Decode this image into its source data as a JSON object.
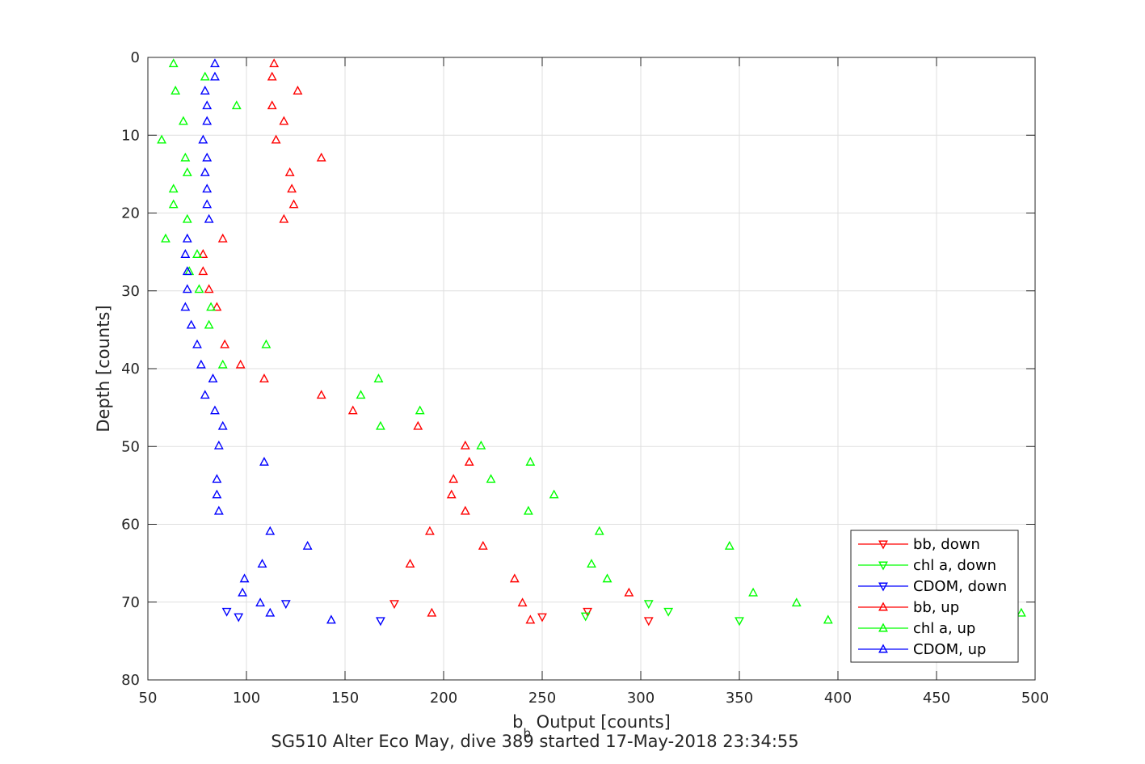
{
  "chart_data": {
    "type": "scatter",
    "title": "",
    "xlabel_base": "b",
    "xlabel_sub": "b",
    "xlabel_rest": " Output [counts]",
    "caption": "SG510 Alter Eco May, dive 389 started 17-May-2018 23:34:55",
    "ylabel": "Depth [counts]",
    "xlim": [
      50,
      500
    ],
    "ylim": [
      0,
      80
    ],
    "y_reversed": true,
    "grid": true,
    "legend_position": "bottom-right",
    "xticks": [
      50,
      100,
      150,
      200,
      250,
      300,
      350,
      400,
      450,
      500
    ],
    "yticks": [
      0,
      10,
      20,
      30,
      40,
      50,
      60,
      70,
      80
    ],
    "series": [
      {
        "name": "bb, down",
        "color": "#ff0000",
        "marker": "triangle-down",
        "points": [
          [
            175,
            70.2
          ],
          [
            250,
            71.9
          ],
          [
            273,
            71.2
          ],
          [
            304,
            72.4
          ]
        ]
      },
      {
        "name": "chl a, down",
        "color": "#00ff00",
        "marker": "triangle-down",
        "points": [
          [
            272,
            71.8
          ],
          [
            304,
            70.2
          ],
          [
            314,
            71.2
          ],
          [
            350,
            72.4
          ]
        ]
      },
      {
        "name": "CDOM, down",
        "color": "#0000ff",
        "marker": "triangle-down",
        "points": [
          [
            90,
            71.2
          ],
          [
            96,
            71.9
          ],
          [
            120,
            70.2
          ],
          [
            168,
            72.4
          ]
        ]
      },
      {
        "name": "bb, up",
        "color": "#ff0000",
        "marker": "triangle-up",
        "points": [
          [
            114,
            0.8
          ],
          [
            113,
            2.5
          ],
          [
            126,
            4.3
          ],
          [
            113,
            6.2
          ],
          [
            119,
            8.2
          ],
          [
            115,
            10.6
          ],
          [
            138,
            12.9
          ],
          [
            122,
            14.8
          ],
          [
            123,
            16.9
          ],
          [
            124,
            18.9
          ],
          [
            119,
            20.8
          ],
          [
            88,
            23.3
          ],
          [
            78,
            25.3
          ],
          [
            78,
            27.5
          ],
          [
            81,
            29.8
          ],
          [
            85,
            32.1
          ],
          [
            89,
            36.9
          ],
          [
            97,
            39.5
          ],
          [
            109,
            41.3
          ],
          [
            138,
            43.4
          ],
          [
            154,
            45.4
          ],
          [
            187,
            47.4
          ],
          [
            211,
            49.9
          ],
          [
            213,
            52.0
          ],
          [
            205,
            54.2
          ],
          [
            204,
            56.2
          ],
          [
            211,
            58.3
          ],
          [
            193,
            60.9
          ],
          [
            220,
            62.8
          ],
          [
            183,
            65.1
          ],
          [
            236,
            67.0
          ],
          [
            294,
            68.8
          ],
          [
            240,
            70.1
          ],
          [
            194,
            71.4
          ],
          [
            244,
            72.3
          ]
        ]
      },
      {
        "name": "chl a, up",
        "color": "#00ff00",
        "marker": "triangle-up",
        "points": [
          [
            63,
            0.8
          ],
          [
            79,
            2.5
          ],
          [
            64,
            4.3
          ],
          [
            95,
            6.2
          ],
          [
            68,
            8.2
          ],
          [
            57,
            10.6
          ],
          [
            69,
            12.9
          ],
          [
            70,
            14.8
          ],
          [
            63,
            16.9
          ],
          [
            63,
            18.9
          ],
          [
            70,
            20.8
          ],
          [
            59,
            23.3
          ],
          [
            75,
            25.3
          ],
          [
            71,
            27.5
          ],
          [
            76,
            29.8
          ],
          [
            82,
            32.1
          ],
          [
            81,
            34.4
          ],
          [
            110,
            36.9
          ],
          [
            88,
            39.5
          ],
          [
            167,
            41.3
          ],
          [
            158,
            43.4
          ],
          [
            188,
            45.4
          ],
          [
            168,
            47.4
          ],
          [
            219,
            49.9
          ],
          [
            244,
            52.0
          ],
          [
            224,
            54.2
          ],
          [
            256,
            56.2
          ],
          [
            243,
            58.3
          ],
          [
            279,
            60.9
          ],
          [
            345,
            62.8
          ],
          [
            275,
            65.1
          ],
          [
            283,
            67.0
          ],
          [
            357,
            68.8
          ],
          [
            379,
            70.1
          ],
          [
            493,
            71.4
          ],
          [
            395,
            72.3
          ]
        ]
      },
      {
        "name": "CDOM, up",
        "color": "#0000ff",
        "marker": "triangle-up",
        "points": [
          [
            84,
            0.8
          ],
          [
            84,
            2.5
          ],
          [
            79,
            4.3
          ],
          [
            80,
            6.2
          ],
          [
            80,
            8.2
          ],
          [
            78,
            10.6
          ],
          [
            80,
            12.9
          ],
          [
            79,
            14.8
          ],
          [
            80,
            16.9
          ],
          [
            80,
            18.9
          ],
          [
            81,
            20.8
          ],
          [
            70,
            23.3
          ],
          [
            69,
            25.3
          ],
          [
            70,
            27.5
          ],
          [
            70,
            29.8
          ],
          [
            69,
            32.1
          ],
          [
            72,
            34.4
          ],
          [
            75,
            36.9
          ],
          [
            77,
            39.5
          ],
          [
            83,
            41.3
          ],
          [
            79,
            43.4
          ],
          [
            84,
            45.4
          ],
          [
            88,
            47.4
          ],
          [
            86,
            49.9
          ],
          [
            109,
            52.0
          ],
          [
            85,
            54.2
          ],
          [
            85,
            56.2
          ],
          [
            86,
            58.3
          ],
          [
            112,
            60.9
          ],
          [
            131,
            62.8
          ],
          [
            108,
            65.1
          ],
          [
            99,
            67.0
          ],
          [
            98,
            68.8
          ],
          [
            107,
            70.1
          ],
          [
            112,
            71.4
          ],
          [
            143,
            72.3
          ]
        ]
      }
    ]
  }
}
